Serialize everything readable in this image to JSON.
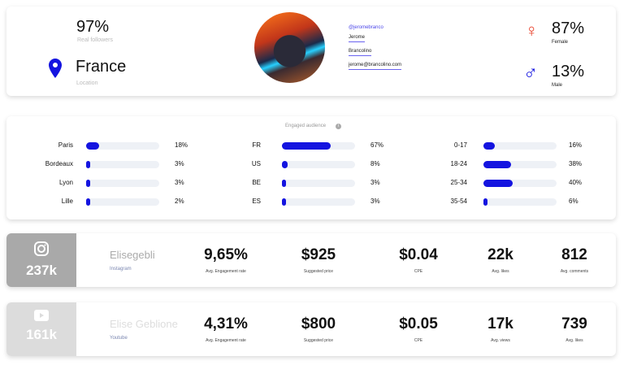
{
  "profile": {
    "real_followers_value": "97%",
    "real_followers_label": "Real followers",
    "location_value": "France",
    "location_label": "Location",
    "handle": "@jeromebranco",
    "first_name": "Jerome",
    "last_name": "Brancolino",
    "email": "jerome@brancolino.com",
    "female_value": "87%",
    "female_label": "Female",
    "male_value": "13%",
    "male_label": "Male",
    "colors": {
      "accent": "#1414e0",
      "female": "#e8402a",
      "link_underline": "#6a63f0"
    }
  },
  "audience": {
    "title": "Engaged audience",
    "cities": [
      {
        "label": "Paris",
        "pct": "18%",
        "value": 18
      },
      {
        "label": "Bordeaux",
        "pct": "3%",
        "value": 3
      },
      {
        "label": "Lyon",
        "pct": "3%",
        "value": 3
      },
      {
        "label": "Lille",
        "pct": "2%",
        "value": 2
      }
    ],
    "countries": [
      {
        "label": "FR",
        "pct": "67%",
        "value": 67
      },
      {
        "label": "US",
        "pct": "8%",
        "value": 8
      },
      {
        "label": "BE",
        "pct": "3%",
        "value": 3
      },
      {
        "label": "ES",
        "pct": "3%",
        "value": 3
      }
    ],
    "ages": [
      {
        "label": "0-17",
        "pct": "16%",
        "value": 16
      },
      {
        "label": "18-24",
        "pct": "38%",
        "value": 38
      },
      {
        "label": "25-34",
        "pct": "40%",
        "value": 40
      },
      {
        "label": "35-54",
        "pct": "6%",
        "value": 6
      }
    ]
  },
  "platforms": [
    {
      "icon": "instagram-icon",
      "followers": "237k",
      "name": "Elisegebli",
      "platform": "Instagram",
      "color": "#a9a9a9",
      "metrics": [
        {
          "value": "9,65%",
          "label": "Avg. Engagement rate"
        },
        {
          "value": "$925",
          "label": "Suggested price"
        },
        {
          "value": "$0.04",
          "label": "CPE"
        },
        {
          "value": "22k",
          "label": "Avg. likes"
        },
        {
          "value": "812",
          "label": "Avg. comments"
        }
      ]
    },
    {
      "icon": "youtube-icon",
      "followers": "161k",
      "name": "Elise Geblione",
      "platform": "Youtube",
      "color": "#dcdcdc",
      "metrics": [
        {
          "value": "4,31%",
          "label": "Avg. Engagement rate"
        },
        {
          "value": "$800",
          "label": "Suggested price"
        },
        {
          "value": "$0.05",
          "label": "CPE"
        },
        {
          "value": "17k",
          "label": "Avg. views"
        },
        {
          "value": "739",
          "label": "Avg. likes"
        }
      ]
    }
  ]
}
